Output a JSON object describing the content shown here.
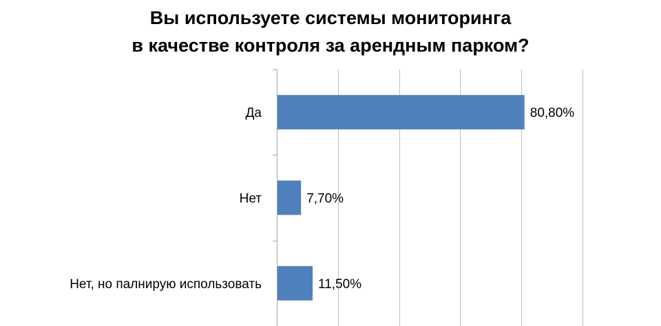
{
  "chart_data": {
    "type": "bar",
    "orientation": "horizontal",
    "title_lines": [
      "Вы используете системы мониторинга",
      "в качестве контроля за арендным парком?"
    ],
    "categories": [
      "Да",
      "Нет",
      "Нет, но палнирую использовать"
    ],
    "values": [
      80.8,
      7.7,
      11.5
    ],
    "value_labels": [
      "80,80%",
      "7,70%",
      "11,50%"
    ],
    "xlim": [
      0,
      100
    ],
    "x_grid_step": 20,
    "grid": true,
    "legend": "none",
    "bar_color": "#4F81BD",
    "grid_color": "#BFBFBF",
    "axis_color": "#A6A6A6"
  }
}
